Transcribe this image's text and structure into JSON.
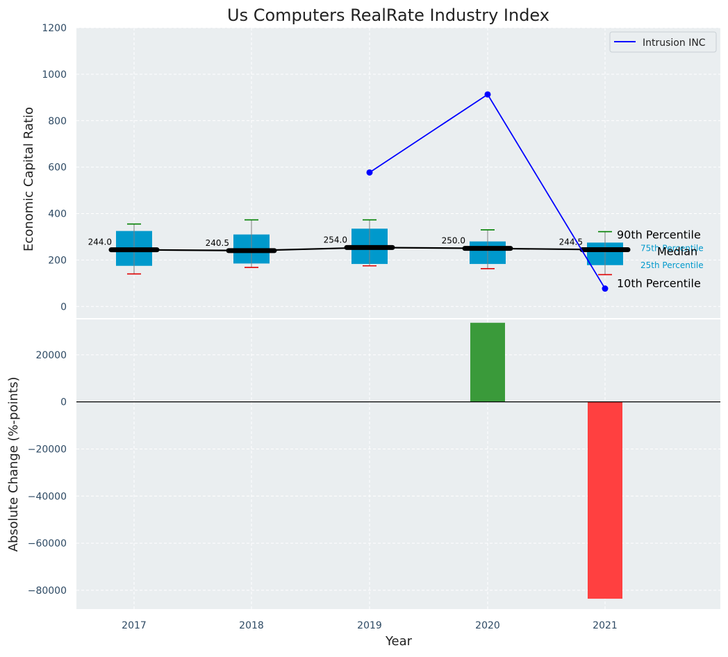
{
  "colors": {
    "plot_bg": "#eaeef0",
    "grid": "#ffffff",
    "tick_text": "#2e4a64",
    "box_fill": "#0099cc",
    "whisker": "#808080",
    "p90_cap": "#008000",
    "p10_cap": "#e00000",
    "median_line": "#000000",
    "company_line": "#0000ff",
    "bar_positive": "#3a9a3a",
    "bar_negative": "#ff4040",
    "annotation_small": "#0099cc",
    "text": "#222222"
  },
  "chart_data": [
    {
      "type": "box",
      "title": "Us Computers RealRate Industry Index",
      "xlabel": "",
      "ylabel": "Economic Capital Ratio",
      "ylim": [
        -50,
        1200
      ],
      "yticks": [
        0,
        200,
        400,
        600,
        800,
        1000,
        1200
      ],
      "categories": [
        "2017",
        "2018",
        "2019",
        "2020",
        "2021"
      ],
      "percentiles": {
        "p10": [
          140,
          168,
          175,
          163,
          137
        ],
        "p25": [
          175,
          185,
          183,
          183,
          178
        ],
        "median": [
          244.0,
          240.5,
          254.0,
          250.0,
          244.5
        ],
        "p75": [
          325,
          310,
          335,
          280,
          275
        ],
        "p90": [
          355,
          373,
          373,
          330,
          322
        ]
      },
      "median_labels": [
        "244.0",
        "240.5",
        "254.0",
        "250.0",
        "244.5"
      ],
      "series": [
        {
          "name": "Intrusion INC",
          "x": [
            "2019",
            "2020",
            "2021"
          ],
          "values": [
            577,
            913,
            77
          ]
        }
      ],
      "legend": {
        "entries": [
          "Intrusion INC"
        ],
        "position": "top-right"
      },
      "annotations": {
        "p90": "90th Percentile",
        "p75": "75th Percentile",
        "median": "Median",
        "p25": "25th Percentile",
        "p10": "10th Percentile"
      },
      "grid": true
    },
    {
      "type": "bar",
      "xlabel": "Year",
      "ylabel": "Absolute Change (%-points)",
      "ylim": [
        -88000,
        35000
      ],
      "yticks": [
        -80000,
        -60000,
        -40000,
        -20000,
        0,
        20000
      ],
      "ytick_labels": [
        "−80000",
        "−60000",
        "−40000",
        "−20000",
        "0",
        "20000"
      ],
      "categories": [
        "2017",
        "2018",
        "2019",
        "2020",
        "2021"
      ],
      "values": [
        0,
        0,
        0,
        33600,
        -83600
      ],
      "grid": true
    }
  ]
}
